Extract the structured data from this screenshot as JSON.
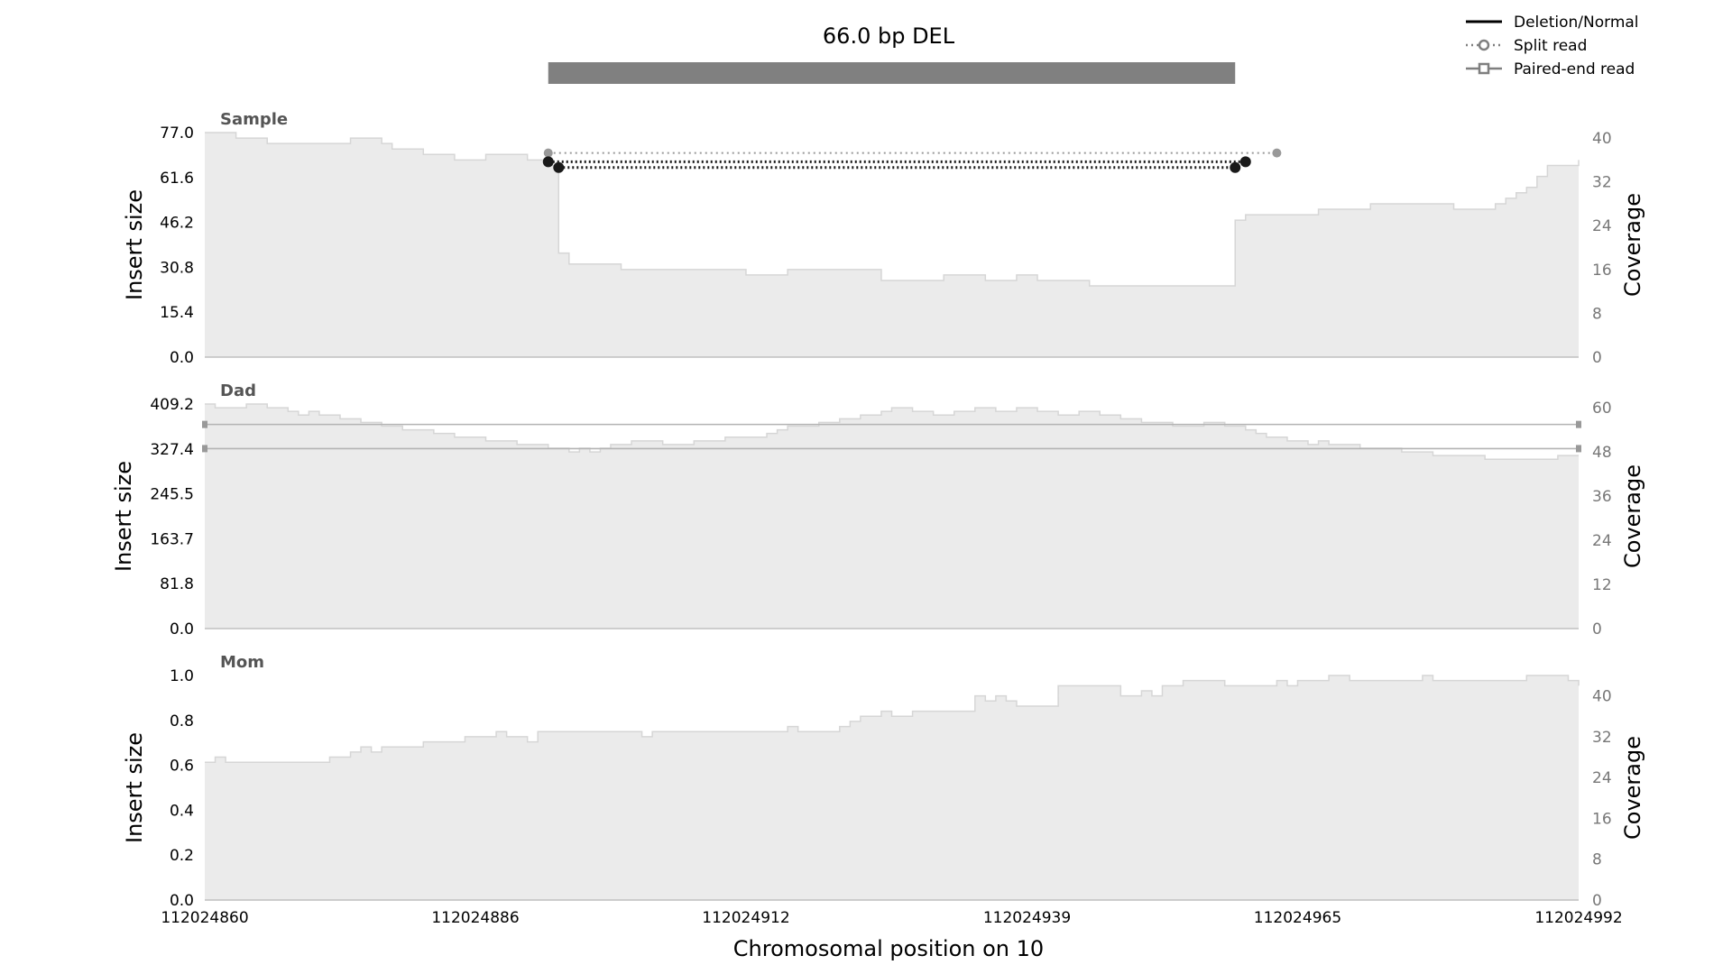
{
  "chart_data": {
    "type": "area",
    "title": "66.0 bp DEL",
    "xlabel": "Chromosomal position on 10",
    "xlim": [
      112024860,
      112024992
    ],
    "x_ticks": [
      "112024860",
      "112024886",
      "112024912",
      "112024939",
      "112024965",
      "112024992"
    ],
    "variant_bar": {
      "start": 112024893,
      "end": 112024959,
      "color": "#808080"
    },
    "legend": {
      "placement": "top-right",
      "items": [
        {
          "label": "Deletion/Normal",
          "style": "solid",
          "color": "#000000"
        },
        {
          "label": "Split read",
          "style": "dotted-circle",
          "color": "#7f7f7f"
        },
        {
          "label": "Paired-end read",
          "style": "solid-square",
          "color": "#7f7f7f"
        }
      ]
    },
    "panels": [
      {
        "name": "Sample",
        "ylabel": "Insert size",
        "y2label": "Coverage",
        "ylim": [
          0,
          77.0
        ],
        "y_ticks": [
          "0.0",
          "15.4",
          "30.8",
          "46.2",
          "61.6",
          "77.0"
        ],
        "y2lim": [
          0,
          41
        ],
        "y2_ticks": [
          "0",
          "8",
          "16",
          "24",
          "32",
          "40"
        ],
        "coverage": {
          "x": [
            112024860,
            112024863,
            112024866,
            112024873,
            112024874,
            112024877,
            112024878,
            112024881,
            112024884,
            112024887,
            112024891,
            112024893,
            112024894,
            112024895,
            112024900,
            112024908,
            112024912,
            112024916,
            112024922,
            112024925,
            112024931,
            112024935,
            112024938,
            112024940,
            112024945,
            112024958,
            112024959,
            112024960,
            112024962,
            112024967,
            112024972,
            112024980,
            112024984,
            112024985,
            112024986,
            112024987,
            112024988,
            112024989,
            112024992
          ],
          "values": [
            41,
            40,
            39,
            39,
            40,
            39,
            38,
            37,
            36,
            37,
            36,
            35,
            19,
            17,
            16,
            16,
            15,
            16,
            16,
            14,
            15,
            14,
            15,
            14,
            13,
            13,
            25,
            26,
            26,
            27,
            28,
            27,
            28,
            29,
            30,
            31,
            33,
            35,
            36
          ]
        },
        "split_reads": [
          {
            "start": 112024893,
            "end": 112024963,
            "y": 70.0,
            "color": "#999999"
          },
          {
            "start": 112024893,
            "end": 112024960,
            "y": 67.0,
            "color": "#1a1a1a"
          },
          {
            "start": 112024894,
            "end": 112024959,
            "y": 65.0,
            "color": "#1a1a1a"
          }
        ],
        "paired_end_reads": []
      },
      {
        "name": "Dad",
        "ylabel": "Insert size",
        "y2label": "Coverage",
        "ylim": [
          0,
          409.2
        ],
        "y_ticks": [
          "0.0",
          "81.8",
          "163.7",
          "245.5",
          "327.4",
          "409.2"
        ],
        "y2lim": [
          0,
          61
        ],
        "y2_ticks": [
          "0",
          "12",
          "24",
          "36",
          "48",
          "60"
        ],
        "coverage": {
          "x": [
            112024860,
            112024861,
            112024864,
            112024866,
            112024868,
            112024869,
            112024870,
            112024871,
            112024873,
            112024875,
            112024877,
            112024879,
            112024882,
            112024884,
            112024887,
            112024890,
            112024893,
            112024895,
            112024896,
            112024897,
            112024898,
            112024899,
            112024901,
            112024904,
            112024907,
            112024910,
            112024914,
            112024915,
            112024916,
            112024919,
            112024921,
            112024923,
            112024925,
            112024926,
            112024928,
            112024930,
            112024932,
            112024934,
            112024936,
            112024938,
            112024940,
            112024942,
            112024944,
            112024946,
            112024948,
            112024950,
            112024953,
            112024956,
            112024958,
            112024960,
            112024961,
            112024962,
            112024964,
            112024966,
            112024967,
            112024968,
            112024971,
            112024975,
            112024978,
            112024981,
            112024983,
            112024986,
            112024990,
            112024992
          ],
          "values": [
            61,
            60,
            61,
            60,
            59,
            58,
            59,
            58,
            57,
            56,
            55,
            54,
            53,
            52,
            51,
            50,
            49,
            48,
            49,
            48,
            49,
            50,
            51,
            50,
            51,
            52,
            53,
            54,
            55,
            56,
            57,
            58,
            59,
            60,
            59,
            58,
            59,
            60,
            59,
            60,
            59,
            58,
            59,
            58,
            57,
            56,
            55,
            56,
            55,
            54,
            53,
            52,
            51,
            50,
            51,
            50,
            49,
            48,
            47,
            47,
            46,
            46,
            47,
            47
          ]
        },
        "split_reads": [],
        "paired_end_reads": [
          {
            "start": 112024860,
            "end": 112024992,
            "y": 372.0
          },
          {
            "start": 112024860,
            "end": 112024992,
            "y": 328.0
          }
        ]
      },
      {
        "name": "Mom",
        "ylabel": "Insert size",
        "y2label": "Coverage",
        "ylim": [
          0,
          1.0
        ],
        "y_ticks": [
          "0.0",
          "0.2",
          "0.4",
          "0.6",
          "0.8",
          "1.0"
        ],
        "y2lim": [
          0,
          44
        ],
        "y2_ticks": [
          "0",
          "8",
          "16",
          "24",
          "32",
          "40"
        ],
        "coverage": {
          "x": [
            112024860,
            112024861,
            112024862,
            112024867,
            112024872,
            112024874,
            112024875,
            112024876,
            112024877,
            112024881,
            112024885,
            112024888,
            112024889,
            112024891,
            112024892,
            112024895,
            112024902,
            112024903,
            112024906,
            112024916,
            112024917,
            112024921,
            112024922,
            112024923,
            112024925,
            112024926,
            112024928,
            112024933,
            112024934,
            112024935,
            112024936,
            112024937,
            112024938,
            112024942,
            112024948,
            112024949,
            112024950,
            112024951,
            112024952,
            112024954,
            112024958,
            112024961,
            112024963,
            112024964,
            112024965,
            112024966,
            112024968,
            112024970,
            112024976,
            112024977,
            112024978,
            112024985,
            112024987,
            112024988,
            112024991,
            112024992
          ],
          "values": [
            27,
            28,
            27,
            27,
            28,
            29,
            30,
            29,
            30,
            31,
            32,
            33,
            32,
            31,
            33,
            33,
            32,
            33,
            33,
            34,
            33,
            34,
            35,
            36,
            37,
            36,
            37,
            37,
            40,
            39,
            40,
            39,
            38,
            42,
            40,
            40,
            41,
            40,
            42,
            43,
            42,
            42,
            43,
            42,
            43,
            43,
            44,
            43,
            43,
            44,
            43,
            43,
            44,
            44,
            43,
            42
          ]
        },
        "split_reads": [],
        "paired_end_reads": []
      }
    ]
  }
}
